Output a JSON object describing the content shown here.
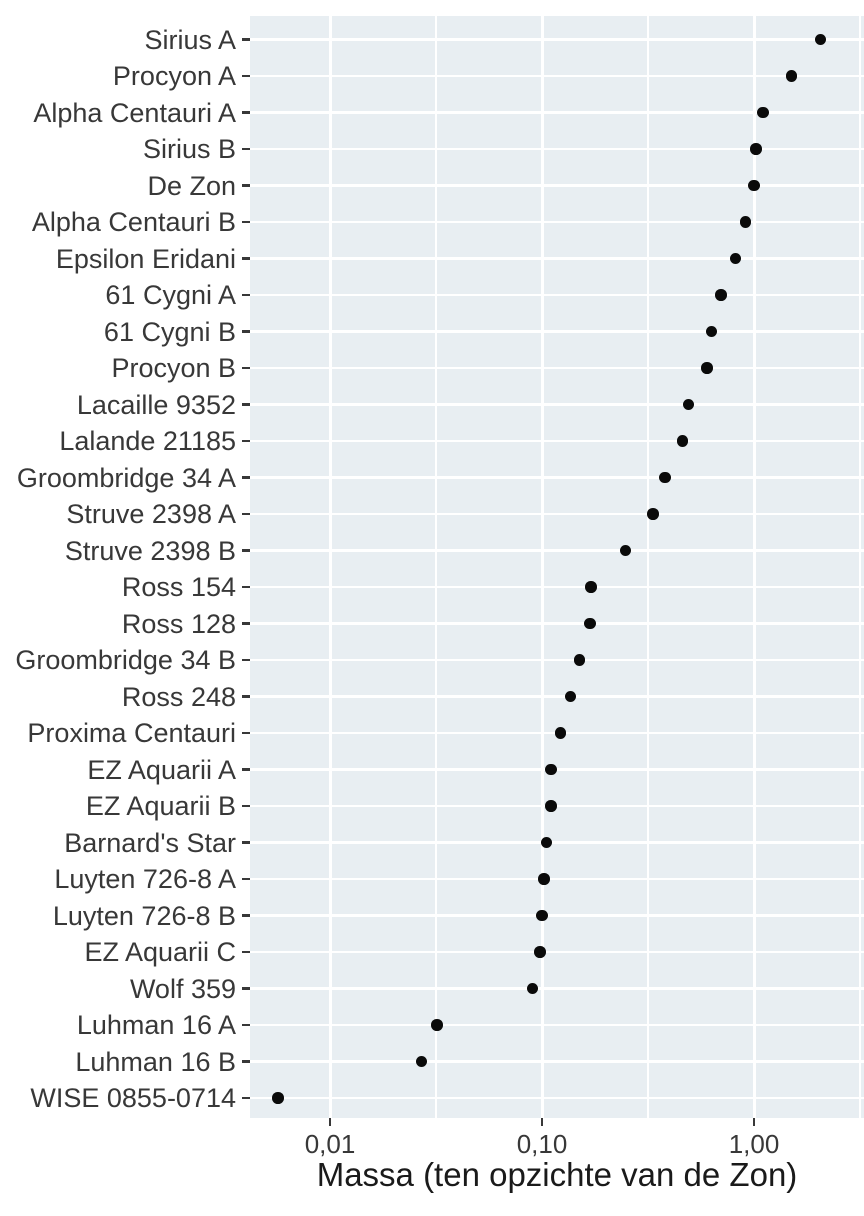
{
  "chart_data": {
    "type": "scatter",
    "variant": "cleveland-dot-plot",
    "title": "",
    "xlabel": "Massa (ten opzichte van de Zon)",
    "ylabel": "",
    "x_scale": "log10",
    "xlim": [
      0.0042,
      3.3
    ],
    "grid": true,
    "legend": false,
    "x_major_ticks": {
      "values": [
        0.01,
        0.1,
        1.0
      ],
      "labels": [
        "0,01",
        "0,10",
        "1,00"
      ]
    },
    "x_minor_gridlines": [
      0.0316,
      0.3162,
      3.1623
    ],
    "categories": [
      "Sirius A",
      "Procyon A",
      "Alpha Centauri A",
      "Sirius B",
      "De Zon",
      "Alpha Centauri B",
      "Epsilon Eridani",
      "61 Cygni A",
      "61 Cygni B",
      "Procyon B",
      "Lacaille 9352",
      "Lalande 21185",
      "Groombridge 34 A",
      "Struve 2398 A",
      "Struve 2398 B",
      "Ross 154",
      "Ross 128",
      "Groombridge 34 B",
      "Ross 248",
      "Proxima Centauri",
      "EZ Aquarii A",
      "EZ Aquarii B",
      "Barnard's Star",
      "Luyten 726-8 A",
      "Luyten 726-8 B",
      "EZ Aquarii C",
      "Wolf 359",
      "Luhman 16 A",
      "Luhman 16 B",
      "WISE 0855-0714"
    ],
    "values": [
      2.06,
      1.5,
      1.1,
      1.02,
      1.0,
      0.91,
      0.82,
      0.7,
      0.63,
      0.6,
      0.49,
      0.46,
      0.38,
      0.334,
      0.248,
      0.17,
      0.168,
      0.15,
      0.136,
      0.122,
      0.11,
      0.11,
      0.105,
      0.102,
      0.1,
      0.098,
      0.09,
      0.032,
      0.027,
      0.0057
    ],
    "colors": {
      "panel_bg": "#e8eef2",
      "gridline": "#ffffff",
      "dot": "#0a0a0a",
      "axis_text": "#383838",
      "title_text": "#1a1a1a"
    }
  }
}
